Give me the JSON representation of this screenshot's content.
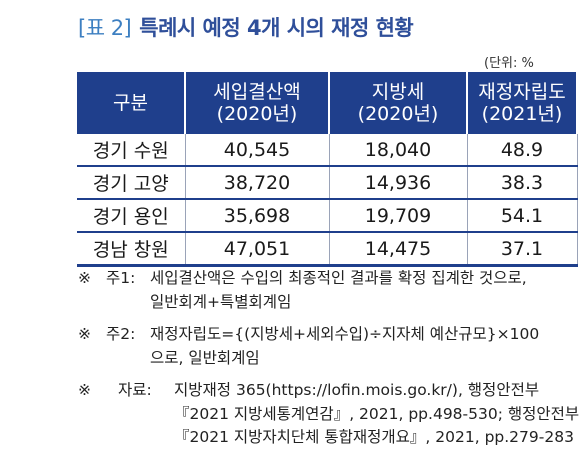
{
  "title": {
    "tag": "[표 2]",
    "text": "특례시 예정 4개 시의 재정 현황"
  },
  "unit": "(단위: %",
  "table": {
    "headers": [
      {
        "line1": "구분",
        "line2": ""
      },
      {
        "line1": "세입결산액",
        "line2": "(2020년)"
      },
      {
        "line1": "지방세",
        "line2": "(2020년)"
      },
      {
        "line1": "재정자립도",
        "line2": "(2021년)"
      }
    ],
    "rows": [
      {
        "name": "경기 수원",
        "revenue": "40,545",
        "localtax": "18,040",
        "ratio": "48.9"
      },
      {
        "name": "경기 고양",
        "revenue": "38,720",
        "localtax": "14,936",
        "ratio": "38.3"
      },
      {
        "name": "경기 용인",
        "revenue": "35,698",
        "localtax": "19,709",
        "ratio": "54.1"
      },
      {
        "name": "경남 창원",
        "revenue": "47,051",
        "localtax": "14,475",
        "ratio": "37.1"
      }
    ]
  },
  "notes": {
    "note1": {
      "mark": "※",
      "label": "주1:",
      "body": "세입결산액은 수입의 최종적인 결과를 확정 집계한 것으로,",
      "cont": "일반회계+특별회계임"
    },
    "note2": {
      "mark": "※",
      "label": "주2:",
      "body": "재정자립도={(지방세+세외수입)÷지자체 예산규모}×100",
      "cont": "으로, 일반회계임"
    },
    "note3": {
      "mark": "※",
      "label": "자료:",
      "body": "지방재정 365(https://lofin.mois.go.kr/), 행정안전부",
      "cont1": "『2021 지방세통계연감』, 2021, pp.498-530; 행정안전부",
      "cont2": "『2021 지방자치단체 통합재정개요』, 2021, pp.279-283"
    }
  }
}
